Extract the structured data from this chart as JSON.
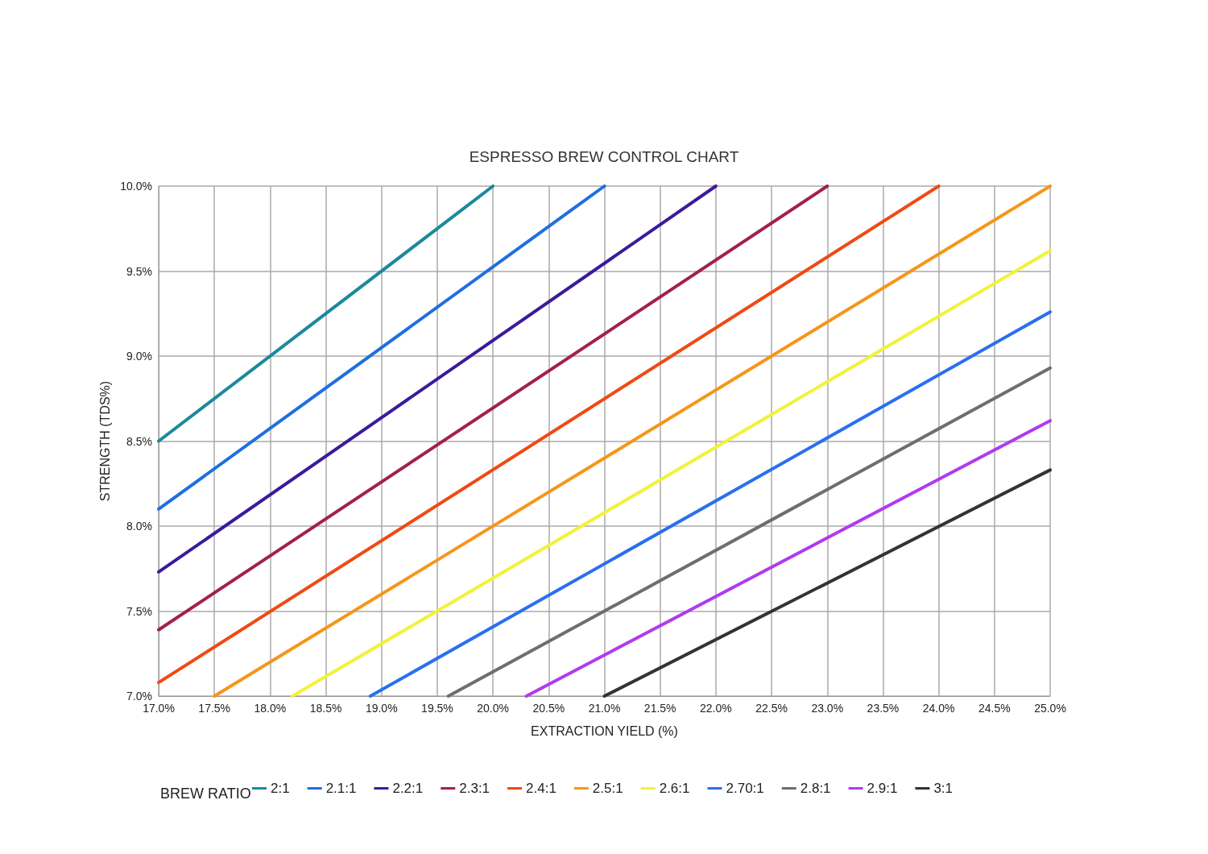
{
  "chart_data": {
    "type": "line",
    "title": "ESPRESSO BREW CONTROL CHART",
    "xlabel": "EXTRACTION YIELD (%)",
    "ylabel": "STRENGTH (TDS%)",
    "legend_title": "BREW RATIO",
    "series": [
      {
        "name": "2:1",
        "color": "#1b8a9c",
        "x": [
          17,
          20
        ],
        "values": [
          8.5,
          10
        ]
      },
      {
        "name": "2.1:1",
        "color": "#1e6fe0",
        "x": [
          17,
          21
        ],
        "values": [
          8.1,
          10
        ]
      },
      {
        "name": "2.2:1",
        "color": "#3b1a9c",
        "x": [
          17,
          22
        ],
        "values": [
          7.73,
          10
        ]
      },
      {
        "name": "2.3:1",
        "color": "#a3204a",
        "x": [
          17,
          23
        ],
        "values": [
          7.39,
          10
        ]
      },
      {
        "name": "2.4:1",
        "color": "#f04a12",
        "x": [
          17,
          24
        ],
        "values": [
          7.08,
          10
        ]
      },
      {
        "name": "2.5:1",
        "color": "#f5961a",
        "x": [
          17.5,
          25
        ],
        "values": [
          7,
          10
        ]
      },
      {
        "name": "2.6:1",
        "color": "#f2f23a",
        "x": [
          18.2,
          25
        ],
        "values": [
          7,
          9.62
        ]
      },
      {
        "name": "2.70:1",
        "color": "#2a6ff0",
        "x": [
          18.9,
          25
        ],
        "values": [
          7,
          9.26
        ]
      },
      {
        "name": "2.8:1",
        "color": "#6e6e6e",
        "x": [
          19.6,
          25
        ],
        "values": [
          7,
          8.93
        ]
      },
      {
        "name": "2.9:1",
        "color": "#b03af0",
        "x": [
          20.3,
          25
        ],
        "values": [
          7,
          8.62
        ]
      },
      {
        "name": "3:1",
        "color": "#333333",
        "x": [
          21,
          25
        ],
        "values": [
          7,
          8.33
        ]
      }
    ],
    "xlim": [
      17,
      25
    ],
    "xticks": [
      {
        "value": 17,
        "label": "17.0%"
      },
      {
        "value": 17.5,
        "label": "17.5%"
      },
      {
        "value": 18,
        "label": "18.0%"
      },
      {
        "value": 18.5,
        "label": "18.5%"
      },
      {
        "value": 19,
        "label": "19.0%"
      },
      {
        "value": 19.5,
        "label": "19.5%"
      },
      {
        "value": 20,
        "label": "20.0%"
      },
      {
        "value": 20.5,
        "label": "20.5%"
      },
      {
        "value": 21,
        "label": "21.0%"
      },
      {
        "value": 21.5,
        "label": "21.5%"
      },
      {
        "value": 22,
        "label": "22.0%"
      },
      {
        "value": 22.5,
        "label": "22.5%"
      },
      {
        "value": 23,
        "label": "23.0%"
      },
      {
        "value": 23.5,
        "label": "23.5%"
      },
      {
        "value": 24,
        "label": "24.0%"
      },
      {
        "value": 24.5,
        "label": "24.5%"
      },
      {
        "value": 25,
        "label": "25.0%"
      }
    ],
    "ylim": [
      7,
      10
    ],
    "yticks": [
      {
        "value": 7,
        "label": "7.0%"
      },
      {
        "value": 7.5,
        "label": "7.5%"
      },
      {
        "value": 8,
        "label": "8.0%"
      },
      {
        "value": 8.5,
        "label": "8.5%"
      },
      {
        "value": 9,
        "label": "9.0%"
      },
      {
        "value": 9.5,
        "label": "9.5%"
      },
      {
        "value": 10,
        "label": "10.0%"
      }
    ],
    "grid": true,
    "legend": "bottom",
    "marker": "none",
    "line_style": "solid"
  }
}
